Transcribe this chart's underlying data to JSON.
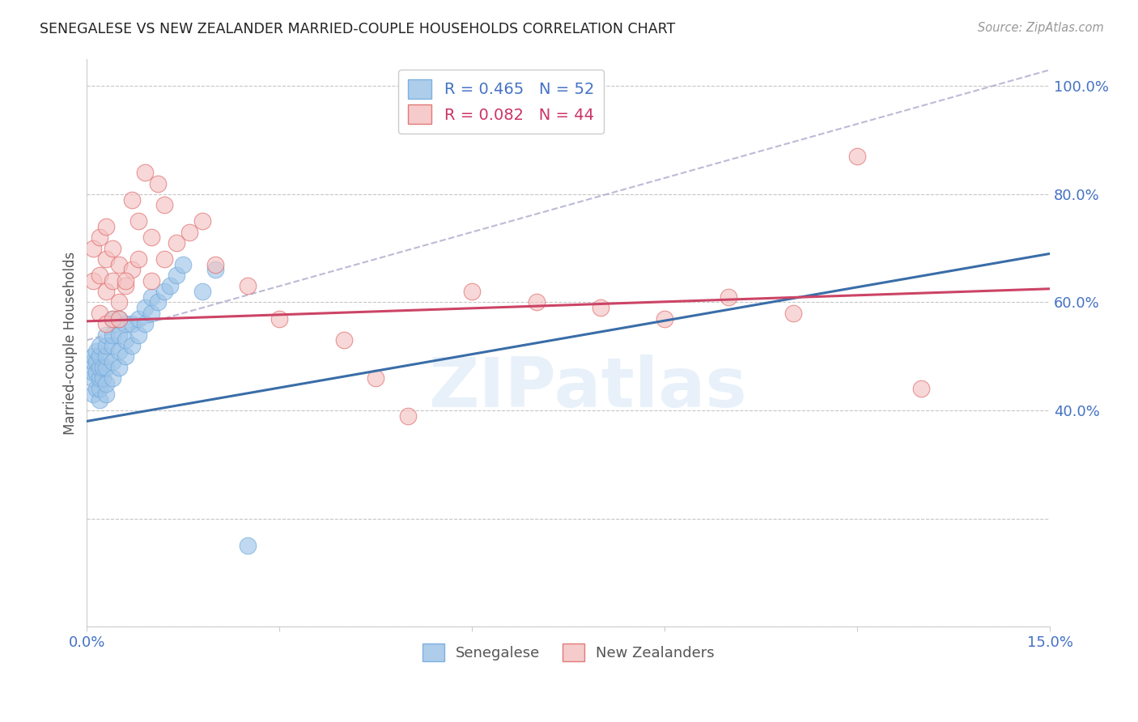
{
  "title": "SENEGALESE VS NEW ZEALANDER MARRIED-COUPLE HOUSEHOLDS CORRELATION CHART",
  "source": "Source: ZipAtlas.com",
  "ylabel": "Married-couple Households",
  "xlim": [
    0.0,
    0.15
  ],
  "ylim": [
    0.0,
    1.05
  ],
  "xticks": [
    0.0,
    0.03,
    0.06,
    0.09,
    0.12,
    0.15
  ],
  "xticklabels": [
    "0.0%",
    "",
    "",
    "",
    "",
    "15.0%"
  ],
  "yticks": [
    0.0,
    0.2,
    0.4,
    0.6,
    0.8,
    1.0
  ],
  "yticklabels": [
    "",
    "",
    "40.0%",
    "60.0%",
    "80.0%",
    "100.0%"
  ],
  "watermark": "ZIPatlas",
  "title_color": "#222222",
  "axis_color": "#4472c4",
  "grid_color": "#c0c0c0",
  "senegalese_color": "#9fc5e8",
  "senegalese_edge": "#6fa8dc",
  "nz_color": "#f4c2c2",
  "nz_edge": "#e06666",
  "blue_line_color": "#3a6da8",
  "pink_line_color": "#cc4466",
  "dashed_line_color": "#aaaacc",
  "blue_line": [
    0.0,
    0.15,
    0.38,
    0.69
  ],
  "pink_line": [
    0.0,
    0.15,
    0.565,
    0.625
  ],
  "dashed_line": [
    0.0,
    0.15,
    0.53,
    1.03
  ],
  "sen_x": [
    0.0008,
    0.001,
    0.001,
    0.001,
    0.001,
    0.0015,
    0.0015,
    0.0015,
    0.0015,
    0.002,
    0.002,
    0.002,
    0.002,
    0.002,
    0.002,
    0.0025,
    0.0025,
    0.003,
    0.003,
    0.003,
    0.003,
    0.003,
    0.003,
    0.004,
    0.004,
    0.004,
    0.004,
    0.004,
    0.005,
    0.005,
    0.005,
    0.005,
    0.006,
    0.006,
    0.006,
    0.007,
    0.007,
    0.008,
    0.008,
    0.009,
    0.009,
    0.01,
    0.01,
    0.011,
    0.012,
    0.013,
    0.014,
    0.015,
    0.018,
    0.02,
    0.025
  ],
  "sen_y": [
    0.46,
    0.47,
    0.49,
    0.5,
    0.43,
    0.44,
    0.47,
    0.49,
    0.51,
    0.42,
    0.44,
    0.46,
    0.48,
    0.5,
    0.52,
    0.46,
    0.48,
    0.43,
    0.45,
    0.48,
    0.5,
    0.52,
    0.54,
    0.46,
    0.49,
    0.52,
    0.54,
    0.57,
    0.48,
    0.51,
    0.54,
    0.57,
    0.5,
    0.53,
    0.56,
    0.52,
    0.56,
    0.54,
    0.57,
    0.56,
    0.59,
    0.58,
    0.61,
    0.6,
    0.62,
    0.63,
    0.65,
    0.67,
    0.62,
    0.66,
    0.15
  ],
  "nz_x": [
    0.001,
    0.001,
    0.002,
    0.002,
    0.002,
    0.003,
    0.003,
    0.003,
    0.004,
    0.004,
    0.005,
    0.005,
    0.006,
    0.007,
    0.008,
    0.01,
    0.012,
    0.014,
    0.016,
    0.018,
    0.02,
    0.025,
    0.03,
    0.04,
    0.045,
    0.05,
    0.06,
    0.07,
    0.08,
    0.09,
    0.1,
    0.11,
    0.12,
    0.13,
    0.003,
    0.004,
    0.005,
    0.006,
    0.007,
    0.008,
    0.009,
    0.01,
    0.011,
    0.012
  ],
  "nz_y": [
    0.64,
    0.7,
    0.58,
    0.65,
    0.72,
    0.56,
    0.62,
    0.68,
    0.57,
    0.64,
    0.6,
    0.67,
    0.63,
    0.66,
    0.68,
    0.64,
    0.68,
    0.71,
    0.73,
    0.75,
    0.67,
    0.63,
    0.57,
    0.53,
    0.46,
    0.39,
    0.62,
    0.6,
    0.59,
    0.57,
    0.61,
    0.58,
    0.87,
    0.44,
    0.74,
    0.7,
    0.57,
    0.64,
    0.79,
    0.75,
    0.84,
    0.72,
    0.82,
    0.78
  ]
}
